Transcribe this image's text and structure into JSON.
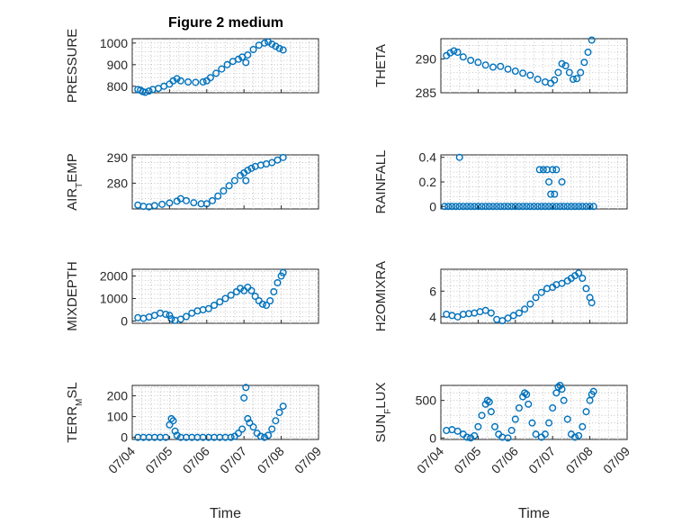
{
  "figure": {
    "title": "Figure 2 medium"
  },
  "chart_data": [
    {
      "type": "scatter",
      "ylabel": "PRESSURE",
      "ylim": [
        770,
        1020
      ],
      "yticks": [
        800,
        900,
        1000
      ],
      "xlim": [
        0,
        5
      ],
      "xticks": [
        "07/04",
        "07/05",
        "07/06",
        "07/07",
        "07/08",
        "07/09"
      ],
      "show_xticks": false,
      "grid": true,
      "marker": "circle",
      "color": "#0072BD",
      "points": [
        [
          0.15,
          785
        ],
        [
          0.22,
          782
        ],
        [
          0.28,
          775
        ],
        [
          0.35,
          772
        ],
        [
          0.45,
          778
        ],
        [
          0.55,
          785
        ],
        [
          0.7,
          790
        ],
        [
          0.85,
          800
        ],
        [
          1.0,
          810
        ],
        [
          1.1,
          825
        ],
        [
          1.2,
          835
        ],
        [
          1.3,
          825
        ],
        [
          1.5,
          820
        ],
        [
          1.7,
          818
        ],
        [
          1.9,
          820
        ],
        [
          2.0,
          825
        ],
        [
          2.1,
          840
        ],
        [
          2.25,
          860
        ],
        [
          2.4,
          880
        ],
        [
          2.55,
          900
        ],
        [
          2.7,
          915
        ],
        [
          2.85,
          925
        ],
        [
          2.95,
          935
        ],
        [
          3.05,
          910
        ],
        [
          3.1,
          945
        ],
        [
          3.25,
          970
        ],
        [
          3.4,
          990
        ],
        [
          3.55,
          1000
        ],
        [
          3.65,
          1005
        ],
        [
          3.75,
          995
        ],
        [
          3.85,
          985
        ],
        [
          3.95,
          975
        ],
        [
          4.05,
          968
        ]
      ]
    },
    {
      "type": "scatter",
      "ylabel": "THETA",
      "ylim": [
        285,
        293
      ],
      "yticks": [
        285,
        290
      ],
      "xlim": [
        0,
        5
      ],
      "xticks": [
        "07/04",
        "07/05",
        "07/06",
        "07/07",
        "07/08",
        "07/09"
      ],
      "show_xticks": false,
      "grid": true,
      "marker": "circle",
      "color": "#0072BD",
      "points": [
        [
          0.15,
          290.5
        ],
        [
          0.25,
          290.9
        ],
        [
          0.35,
          291.2
        ],
        [
          0.45,
          291.0
        ],
        [
          0.6,
          290.3
        ],
        [
          0.8,
          289.8
        ],
        [
          1.0,
          289.5
        ],
        [
          1.2,
          289.1
        ],
        [
          1.4,
          288.8
        ],
        [
          1.6,
          288.9
        ],
        [
          1.8,
          288.5
        ],
        [
          2.0,
          288.2
        ],
        [
          2.2,
          287.9
        ],
        [
          2.4,
          287.6
        ],
        [
          2.6,
          287.0
        ],
        [
          2.8,
          286.6
        ],
        [
          2.95,
          286.4
        ],
        [
          3.05,
          286.9
        ],
        [
          3.15,
          288.0
        ],
        [
          3.25,
          289.3
        ],
        [
          3.35,
          289.0
        ],
        [
          3.45,
          288.0
        ],
        [
          3.55,
          287.0
        ],
        [
          3.65,
          287.1
        ],
        [
          3.75,
          288.0
        ],
        [
          3.85,
          289.5
        ],
        [
          3.95,
          291.0
        ],
        [
          4.05,
          292.8
        ]
      ]
    },
    {
      "type": "scatter",
      "ylabel": "AIR_TEMP",
      "ylim": [
        270,
        291
      ],
      "yticks": [
        280,
        290
      ],
      "xlim": [
        0,
        5
      ],
      "xticks": [
        "07/04",
        "07/05",
        "07/06",
        "07/07",
        "07/08",
        "07/09"
      ],
      "show_xticks": false,
      "grid": true,
      "marker": "circle",
      "color": "#0072BD",
      "points": [
        [
          0.15,
          271.5
        ],
        [
          0.3,
          271.0
        ],
        [
          0.45,
          270.8
        ],
        [
          0.6,
          271.3
        ],
        [
          0.8,
          271.8
        ],
        [
          1.0,
          272.3
        ],
        [
          1.2,
          273.0
        ],
        [
          1.3,
          274.0
        ],
        [
          1.45,
          273.2
        ],
        [
          1.65,
          272.4
        ],
        [
          1.85,
          272.0
        ],
        [
          2.0,
          272.0
        ],
        [
          2.15,
          273.2
        ],
        [
          2.3,
          275.0
        ],
        [
          2.45,
          277.0
        ],
        [
          2.6,
          279.0
        ],
        [
          2.75,
          281.0
        ],
        [
          2.9,
          283.0
        ],
        [
          3.0,
          284.0
        ],
        [
          3.05,
          281.0
        ],
        [
          3.1,
          285.0
        ],
        [
          3.2,
          285.8
        ],
        [
          3.3,
          286.5
        ],
        [
          3.45,
          287.0
        ],
        [
          3.6,
          287.5
        ],
        [
          3.75,
          288.0
        ],
        [
          3.9,
          289.0
        ],
        [
          4.05,
          290.0
        ]
      ]
    },
    {
      "type": "scatter",
      "ylabel": "RAINFALL",
      "ylim": [
        -0.02,
        0.42
      ],
      "yticks": [
        0,
        0.2,
        0.4
      ],
      "xlim": [
        0,
        5
      ],
      "xticks": [
        "07/04",
        "07/05",
        "07/06",
        "07/07",
        "07/08",
        "07/09"
      ],
      "show_xticks": false,
      "grid": true,
      "marker": "circle",
      "color": "#0072BD",
      "points": [
        [
          0.1,
          0
        ],
        [
          0.2,
          0
        ],
        [
          0.3,
          0
        ],
        [
          0.4,
          0
        ],
        [
          0.5,
          0
        ],
        [
          0.6,
          0
        ],
        [
          0.7,
          0
        ],
        [
          0.8,
          0
        ],
        [
          0.9,
          0
        ],
        [
          1.0,
          0
        ],
        [
          1.1,
          0
        ],
        [
          1.2,
          0
        ],
        [
          1.3,
          0
        ],
        [
          1.4,
          0
        ],
        [
          1.5,
          0
        ],
        [
          1.6,
          0
        ],
        [
          1.7,
          0
        ],
        [
          1.8,
          0
        ],
        [
          1.9,
          0
        ],
        [
          2.0,
          0
        ],
        [
          2.1,
          0
        ],
        [
          2.2,
          0
        ],
        [
          2.3,
          0
        ],
        [
          2.4,
          0
        ],
        [
          2.5,
          0
        ],
        [
          2.6,
          0
        ],
        [
          2.7,
          0
        ],
        [
          2.8,
          0
        ],
        [
          2.9,
          0
        ],
        [
          3.0,
          0
        ],
        [
          3.1,
          0
        ],
        [
          3.2,
          0
        ],
        [
          3.3,
          0
        ],
        [
          3.4,
          0
        ],
        [
          3.5,
          0
        ],
        [
          3.6,
          0
        ],
        [
          3.7,
          0
        ],
        [
          3.8,
          0
        ],
        [
          3.9,
          0
        ],
        [
          4.0,
          0
        ],
        [
          4.1,
          0
        ],
        [
          0.5,
          0.4
        ],
        [
          2.65,
          0.3
        ],
        [
          2.75,
          0.3
        ],
        [
          2.85,
          0.3
        ],
        [
          2.9,
          0.2
        ],
        [
          2.95,
          0.1
        ],
        [
          3.0,
          0.3
        ],
        [
          3.05,
          0.1
        ],
        [
          3.1,
          0.3
        ],
        [
          3.25,
          0.2
        ]
      ]
    },
    {
      "type": "scatter",
      "ylabel": "MIXDEPTH",
      "ylim": [
        -100,
        2300
      ],
      "yticks": [
        0,
        1000,
        2000
      ],
      "xlim": [
        0,
        5
      ],
      "xticks": [
        "07/04",
        "07/05",
        "07/06",
        "07/07",
        "07/08",
        "07/09"
      ],
      "show_xticks": false,
      "grid": true,
      "marker": "circle",
      "color": "#0072BD",
      "points": [
        [
          0.15,
          150
        ],
        [
          0.3,
          120
        ],
        [
          0.45,
          180
        ],
        [
          0.6,
          250
        ],
        [
          0.75,
          350
        ],
        [
          0.9,
          300
        ],
        [
          1.0,
          250
        ],
        [
          1.05,
          100
        ],
        [
          1.15,
          30
        ],
        [
          1.3,
          80
        ],
        [
          1.45,
          200
        ],
        [
          1.6,
          350
        ],
        [
          1.75,
          450
        ],
        [
          1.9,
          500
        ],
        [
          2.05,
          550
        ],
        [
          2.2,
          700
        ],
        [
          2.35,
          850
        ],
        [
          2.5,
          1000
        ],
        [
          2.65,
          1150
        ],
        [
          2.8,
          1300
        ],
        [
          2.9,
          1450
        ],
        [
          3.0,
          1350
        ],
        [
          3.1,
          1500
        ],
        [
          3.2,
          1350
        ],
        [
          3.3,
          1100
        ],
        [
          3.4,
          900
        ],
        [
          3.5,
          750
        ],
        [
          3.6,
          700
        ],
        [
          3.7,
          900
        ],
        [
          3.8,
          1300
        ],
        [
          3.9,
          1700
        ],
        [
          4.0,
          2000
        ],
        [
          4.05,
          2150
        ]
      ]
    },
    {
      "type": "scatter",
      "ylabel": "H2OMIXRA",
      "ylim": [
        3.5,
        7.7
      ],
      "yticks": [
        4,
        6
      ],
      "xlim": [
        0,
        5
      ],
      "xticks": [
        "07/04",
        "07/05",
        "07/06",
        "07/07",
        "07/08",
        "07/09"
      ],
      "show_xticks": false,
      "grid": true,
      "marker": "circle",
      "color": "#0072BD",
      "points": [
        [
          0.15,
          4.2
        ],
        [
          0.3,
          4.1
        ],
        [
          0.45,
          4.0
        ],
        [
          0.6,
          4.2
        ],
        [
          0.75,
          4.25
        ],
        [
          0.9,
          4.3
        ],
        [
          1.05,
          4.4
        ],
        [
          1.2,
          4.5
        ],
        [
          1.35,
          4.3
        ],
        [
          1.5,
          3.8
        ],
        [
          1.65,
          3.7
        ],
        [
          1.8,
          3.9
        ],
        [
          1.95,
          4.1
        ],
        [
          2.1,
          4.3
        ],
        [
          2.25,
          4.6
        ],
        [
          2.4,
          5.0
        ],
        [
          2.55,
          5.5
        ],
        [
          2.7,
          5.9
        ],
        [
          2.85,
          6.2
        ],
        [
          3.0,
          6.3
        ],
        [
          3.1,
          6.5
        ],
        [
          3.25,
          6.6
        ],
        [
          3.4,
          6.8
        ],
        [
          3.5,
          7.0
        ],
        [
          3.6,
          7.2
        ],
        [
          3.7,
          7.4
        ],
        [
          3.8,
          7.0
        ],
        [
          3.9,
          6.2
        ],
        [
          4.0,
          5.5
        ],
        [
          4.05,
          5.1
        ]
      ]
    },
    {
      "type": "scatter",
      "ylabel": "TERR_MSL",
      "ylim": [
        -10,
        250
      ],
      "yticks": [
        0,
        100,
        200
      ],
      "xlim": [
        0,
        5
      ],
      "xticks": [
        "07/04",
        "07/05",
        "07/06",
        "07/07",
        "07/08",
        "07/09"
      ],
      "show_xticks": true,
      "xlabel": "Time",
      "grid": true,
      "marker": "circle",
      "color": "#0072BD",
      "points": [
        [
          0.15,
          0
        ],
        [
          0.3,
          0
        ],
        [
          0.45,
          0
        ],
        [
          0.6,
          0
        ],
        [
          0.75,
          0
        ],
        [
          0.9,
          0
        ],
        [
          1.0,
          60
        ],
        [
          1.05,
          90
        ],
        [
          1.1,
          80
        ],
        [
          1.15,
          30
        ],
        [
          1.2,
          10
        ],
        [
          1.3,
          0
        ],
        [
          1.45,
          0
        ],
        [
          1.6,
          0
        ],
        [
          1.75,
          0
        ],
        [
          1.9,
          0
        ],
        [
          2.05,
          0
        ],
        [
          2.2,
          0
        ],
        [
          2.35,
          0
        ],
        [
          2.5,
          0
        ],
        [
          2.65,
          0
        ],
        [
          2.75,
          5
        ],
        [
          2.85,
          20
        ],
        [
          2.95,
          40
        ],
        [
          3.0,
          190
        ],
        [
          3.05,
          240
        ],
        [
          3.1,
          90
        ],
        [
          3.15,
          70
        ],
        [
          3.25,
          50
        ],
        [
          3.35,
          20
        ],
        [
          3.45,
          5
        ],
        [
          3.55,
          0
        ],
        [
          3.65,
          10
        ],
        [
          3.75,
          40
        ],
        [
          3.85,
          80
        ],
        [
          3.95,
          120
        ],
        [
          4.05,
          150
        ]
      ]
    },
    {
      "type": "scatter",
      "ylabel": "SUN_FLUX",
      "ylim": [
        -20,
        700
      ],
      "yticks": [
        0,
        500
      ],
      "xlim": [
        0,
        5
      ],
      "xticks": [
        "07/04",
        "07/05",
        "07/06",
        "07/07",
        "07/08",
        "07/09"
      ],
      "show_xticks": true,
      "xlabel": "Time",
      "grid": true,
      "marker": "circle",
      "color": "#0072BD",
      "points": [
        [
          0.15,
          100
        ],
        [
          0.3,
          110
        ],
        [
          0.45,
          90
        ],
        [
          0.6,
          50
        ],
        [
          0.7,
          10
        ],
        [
          0.8,
          0
        ],
        [
          0.9,
          30
        ],
        [
          1.0,
          150
        ],
        [
          1.1,
          300
        ],
        [
          1.2,
          450
        ],
        [
          1.25,
          500
        ],
        [
          1.3,
          480
        ],
        [
          1.35,
          350
        ],
        [
          1.45,
          150
        ],
        [
          1.55,
          50
        ],
        [
          1.65,
          10
        ],
        [
          1.8,
          0
        ],
        [
          1.9,
          100
        ],
        [
          2.0,
          250
        ],
        [
          2.1,
          400
        ],
        [
          2.2,
          550
        ],
        [
          2.25,
          600
        ],
        [
          2.3,
          580
        ],
        [
          2.35,
          450
        ],
        [
          2.45,
          200
        ],
        [
          2.55,
          50
        ],
        [
          2.7,
          10
        ],
        [
          2.8,
          50
        ],
        [
          2.9,
          200
        ],
        [
          3.0,
          400
        ],
        [
          3.1,
          600
        ],
        [
          3.15,
          680
        ],
        [
          3.2,
          700
        ],
        [
          3.25,
          650
        ],
        [
          3.3,
          500
        ],
        [
          3.4,
          250
        ],
        [
          3.5,
          50
        ],
        [
          3.6,
          10
        ],
        [
          3.7,
          30
        ],
        [
          3.8,
          150
        ],
        [
          3.9,
          350
        ],
        [
          4.0,
          500
        ],
        [
          4.05,
          580
        ],
        [
          4.1,
          620
        ]
      ]
    }
  ]
}
